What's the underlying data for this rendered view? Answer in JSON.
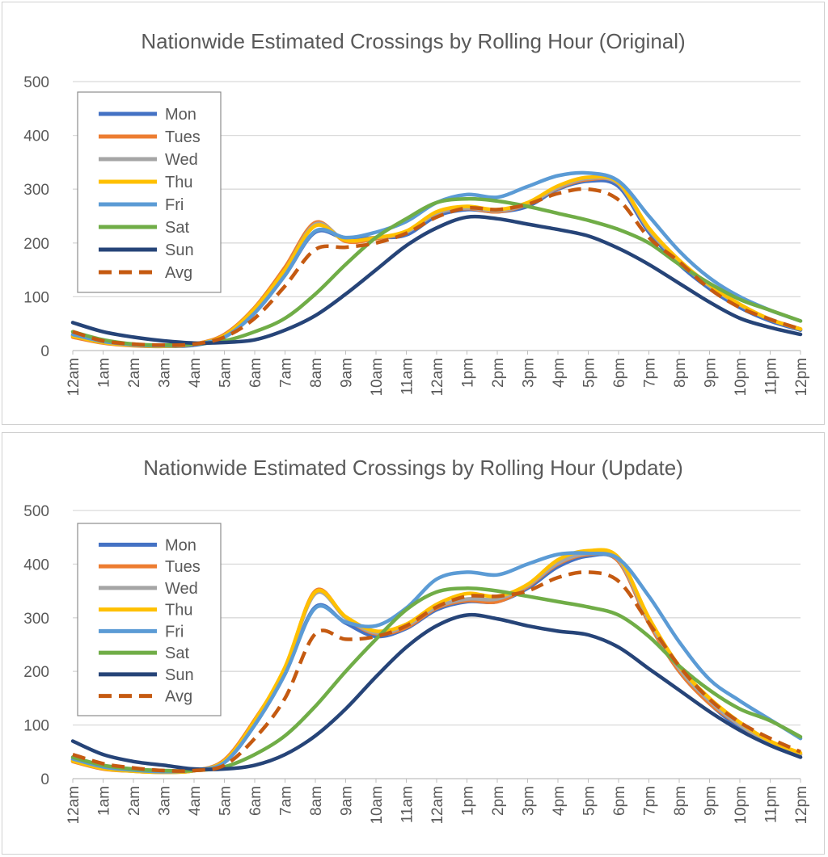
{
  "chart_data": [
    {
      "type": "line",
      "title": "Nationwide Estimated Crossings by Rolling Hour (Original)",
      "xlabel": "",
      "ylabel": "",
      "ylim": [
        0,
        500
      ],
      "y_ticks": [
        "0",
        "100",
        "200",
        "300",
        "400",
        "500"
      ],
      "categories": [
        "12am",
        "1am",
        "2am",
        "3am",
        "4am",
        "5am",
        "6am",
        "7am",
        "8am",
        "9am",
        "10am",
        "11am",
        "12am",
        "1pm",
        "2pm",
        "3pm",
        "4pm",
        "5pm",
        "6pm",
        "7pm",
        "8pm",
        "9pm",
        "10pm",
        "11pm",
        "12pm"
      ],
      "grid": "horizontal",
      "legend_position": "top-left",
      "series": [
        {
          "name": "Mon",
          "color": "#4472C4",
          "dashed": false,
          "values": [
            28,
            15,
            10,
            8,
            10,
            25,
            70,
            140,
            220,
            208,
            210,
            215,
            250,
            262,
            258,
            268,
            300,
            315,
            305,
            220,
            160,
            115,
            80,
            55,
            38
          ]
        },
        {
          "name": "Tues",
          "color": "#ED7D31",
          "dashed": false,
          "values": [
            25,
            14,
            9,
            8,
            12,
            30,
            80,
            155,
            238,
            203,
            208,
            220,
            255,
            264,
            258,
            272,
            302,
            318,
            310,
            225,
            165,
            120,
            85,
            58,
            40
          ]
        },
        {
          "name": "Wed",
          "color": "#A5A5A5",
          "dashed": false,
          "values": [
            27,
            15,
            10,
            8,
            12,
            28,
            78,
            150,
            235,
            205,
            210,
            220,
            255,
            265,
            260,
            272,
            303,
            320,
            310,
            225,
            165,
            120,
            85,
            58,
            40
          ]
        },
        {
          "name": "Thu",
          "color": "#FFC000",
          "dashed": false,
          "values": [
            27,
            15,
            10,
            8,
            12,
            28,
            78,
            150,
            232,
            205,
            210,
            222,
            258,
            268,
            262,
            275,
            306,
            322,
            312,
            228,
            168,
            122,
            86,
            58,
            40
          ]
        },
        {
          "name": "Fri",
          "color": "#5B9BD5",
          "dashed": false,
          "values": [
            30,
            17,
            11,
            9,
            12,
            25,
            70,
            140,
            222,
            210,
            220,
            240,
            275,
            290,
            285,
            305,
            325,
            330,
            315,
            250,
            185,
            135,
            100,
            75,
            55
          ]
        },
        {
          "name": "Sat",
          "color": "#70AD47",
          "dashed": false,
          "values": [
            35,
            20,
            12,
            10,
            12,
            18,
            35,
            60,
            105,
            160,
            210,
            245,
            275,
            282,
            278,
            268,
            255,
            242,
            225,
            200,
            160,
            125,
            95,
            75,
            55
          ]
        },
        {
          "name": "Sun",
          "color": "#264478",
          "dashed": false,
          "values": [
            52,
            35,
            25,
            18,
            14,
            15,
            20,
            38,
            65,
            105,
            150,
            195,
            228,
            248,
            245,
            235,
            225,
            213,
            190,
            160,
            125,
            90,
            60,
            43,
            30
          ]
        },
        {
          "name": "Avg",
          "color": "#C55A11",
          "dashed": true,
          "values": [
            35,
            18,
            12,
            10,
            12,
            25,
            60,
            120,
            188,
            192,
            200,
            218,
            248,
            265,
            262,
            272,
            292,
            300,
            280,
            210,
            165,
            115,
            80,
            58,
            40
          ]
        }
      ]
    },
    {
      "type": "line",
      "title": "Nationwide Estimated Crossings by Rolling Hour (Update)",
      "xlabel": "",
      "ylabel": "",
      "ylim": [
        0,
        500
      ],
      "y_ticks": [
        "0",
        "100",
        "200",
        "300",
        "400",
        "500"
      ],
      "categories": [
        "12am",
        "1am",
        "2am",
        "3am",
        "4am",
        "5am",
        "6am",
        "7am",
        "8am",
        "9am",
        "10am",
        "11am",
        "12am",
        "1pm",
        "2pm",
        "3pm",
        "4pm",
        "5pm",
        "6pm",
        "7pm",
        "8pm",
        "9pm",
        "10pm",
        "11pm",
        "12pm"
      ],
      "grid": "horizontal",
      "legend_position": "top-left",
      "series": [
        {
          "name": "Mon",
          "color": "#4472C4",
          "dashed": false,
          "values": [
            35,
            20,
            15,
            12,
            15,
            30,
            100,
            195,
            320,
            290,
            265,
            280,
            315,
            330,
            330,
            355,
            395,
            415,
            405,
            290,
            200,
            140,
            95,
            65,
            40
          ]
        },
        {
          "name": "Tues",
          "color": "#ED7D31",
          "dashed": false,
          "values": [
            32,
            18,
            14,
            12,
            15,
            35,
            110,
            205,
            350,
            300,
            270,
            282,
            318,
            332,
            330,
            358,
            400,
            418,
            405,
            290,
            200,
            140,
            100,
            65,
            45
          ]
        },
        {
          "name": "Wed",
          "color": "#A5A5A5",
          "dashed": false,
          "values": [
            33,
            19,
            14,
            12,
            15,
            33,
            105,
            205,
            345,
            300,
            272,
            285,
            320,
            335,
            335,
            360,
            402,
            420,
            408,
            295,
            205,
            145,
            100,
            68,
            45
          ]
        },
        {
          "name": "Thu",
          "color": "#FFC000",
          "dashed": false,
          "values": [
            33,
            19,
            14,
            12,
            15,
            33,
            108,
            208,
            348,
            302,
            275,
            288,
            325,
            345,
            340,
            362,
            408,
            425,
            412,
            300,
            210,
            150,
            105,
            70,
            48
          ]
        },
        {
          "name": "Fri",
          "color": "#5B9BD5",
          "dashed": false,
          "values": [
            37,
            22,
            16,
            13,
            16,
            30,
            100,
            195,
            318,
            292,
            285,
            318,
            372,
            385,
            380,
            400,
            418,
            420,
            410,
            340,
            255,
            185,
            145,
            110,
            75
          ]
        },
        {
          "name": "Sat",
          "color": "#70AD47",
          "dashed": false,
          "values": [
            40,
            25,
            18,
            15,
            15,
            22,
            45,
            80,
            135,
            200,
            260,
            315,
            348,
            355,
            350,
            340,
            330,
            320,
            305,
            265,
            210,
            165,
            130,
            108,
            78
          ]
        },
        {
          "name": "Sun",
          "color": "#264478",
          "dashed": false,
          "values": [
            70,
            45,
            32,
            25,
            18,
            18,
            25,
            45,
            80,
            130,
            190,
            245,
            285,
            305,
            298,
            285,
            275,
            268,
            245,
            205,
            165,
            125,
            90,
            62,
            40
          ]
        },
        {
          "name": "Avg",
          "color": "#C55A11",
          "dashed": true,
          "values": [
            45,
            28,
            20,
            15,
            15,
            25,
            75,
            150,
            270,
            260,
            265,
            285,
            320,
            340,
            340,
            350,
            375,
            385,
            368,
            290,
            210,
            148,
            105,
            75,
            50
          ]
        }
      ]
    }
  ]
}
